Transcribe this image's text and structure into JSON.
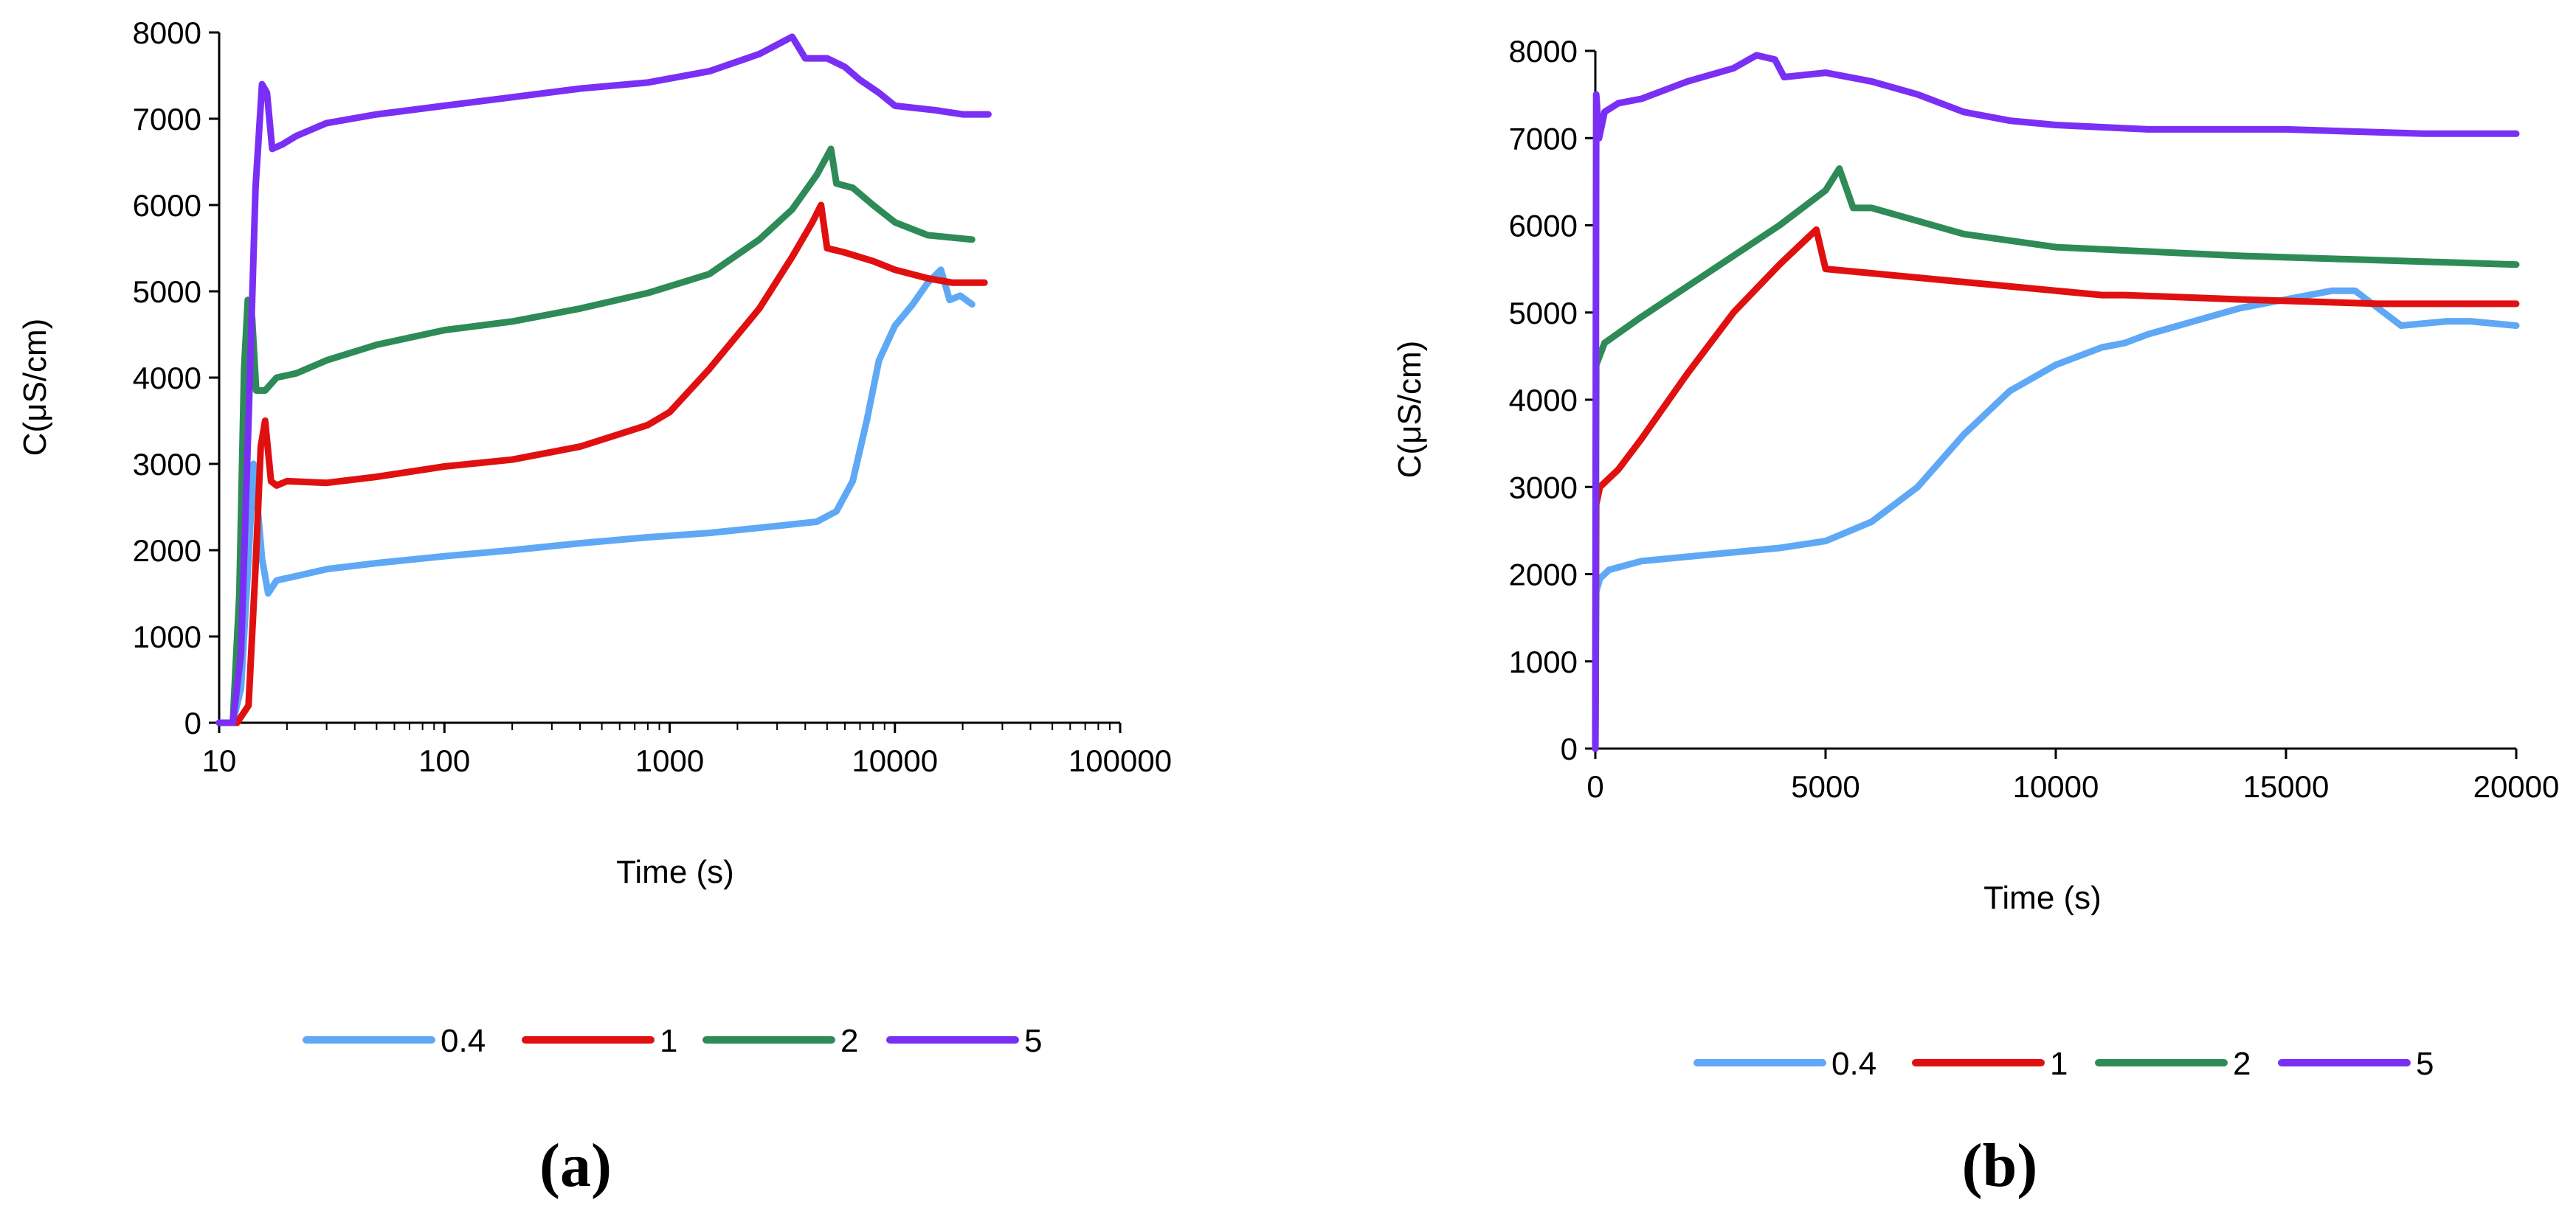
{
  "chart_data": [
    {
      "type": "line",
      "panel_label": "(a)",
      "xscale": "log",
      "xlim": [
        10,
        100000
      ],
      "ylim": [
        0,
        8000
      ],
      "xticks": [
        10,
        100,
        1000,
        10000,
        100000
      ],
      "yticks": [
        0,
        1000,
        2000,
        3000,
        4000,
        5000,
        6000,
        7000,
        8000
      ],
      "xtick_labels": [
        "10",
        "100",
        "1000",
        "10000",
        "100000"
      ],
      "ytick_labels": [
        "0",
        "1000",
        "2000",
        "3000",
        "4000",
        "5000",
        "6000",
        "7000",
        "8000"
      ],
      "xlabel": "Time (s)",
      "ylabel": "C(μS/cm)",
      "legend": "bottom",
      "series": [
        {
          "name": "0.4",
          "color": "#5fa8f5",
          "points": [
            [
              10,
              0
            ],
            [
              11.5,
              0
            ],
            [
              12.5,
              400
            ],
            [
              13.5,
              1900
            ],
            [
              14.2,
              3000
            ],
            [
              14.7,
              2600
            ],
            [
              15.5,
              1900
            ],
            [
              16.5,
              1500
            ],
            [
              18,
              1650
            ],
            [
              22,
              1700
            ],
            [
              30,
              1780
            ],
            [
              50,
              1850
            ],
            [
              100,
              1930
            ],
            [
              200,
              2000
            ],
            [
              400,
              2080
            ],
            [
              800,
              2150
            ],
            [
              1500,
              2200
            ],
            [
              3000,
              2280
            ],
            [
              4500,
              2330
            ],
            [
              5500,
              2450
            ],
            [
              6500,
              2800
            ],
            [
              7500,
              3500
            ],
            [
              8500,
              4200
            ],
            [
              10000,
              4600
            ],
            [
              12000,
              4850
            ],
            [
              14000,
              5100
            ],
            [
              16000,
              5250
            ],
            [
              17500,
              4900
            ],
            [
              19500,
              4950
            ],
            [
              22000,
              4850
            ]
          ]
        },
        {
          "name": "1",
          "color": "#e01010",
          "points": [
            [
              10,
              0
            ],
            [
              12,
              0
            ],
            [
              13.5,
              200
            ],
            [
              14.5,
              1800
            ],
            [
              15.3,
              3200
            ],
            [
              16,
              3500
            ],
            [
              17,
              2800
            ],
            [
              18,
              2750
            ],
            [
              20,
              2800
            ],
            [
              30,
              2780
            ],
            [
              50,
              2850
            ],
            [
              100,
              2970
            ],
            [
              200,
              3050
            ],
            [
              400,
              3200
            ],
            [
              800,
              3450
            ],
            [
              1000,
              3600
            ],
            [
              1500,
              4100
            ],
            [
              2500,
              4800
            ],
            [
              3500,
              5400
            ],
            [
              4300,
              5800
            ],
            [
              4700,
              6000
            ],
            [
              5000,
              5500
            ],
            [
              6000,
              5450
            ],
            [
              8000,
              5350
            ],
            [
              10000,
              5250
            ],
            [
              14000,
              5150
            ],
            [
              18000,
              5100
            ],
            [
              25000,
              5100
            ]
          ]
        },
        {
          "name": "2",
          "color": "#2e8b57",
          "points": [
            [
              10,
              0
            ],
            [
              11.5,
              0
            ],
            [
              12.3,
              1500
            ],
            [
              12.9,
              4100
            ],
            [
              13.4,
              4900
            ],
            [
              14,
              4700
            ],
            [
              14.6,
              3850
            ],
            [
              16,
              3850
            ],
            [
              18,
              4000
            ],
            [
              22,
              4050
            ],
            [
              30,
              4200
            ],
            [
              50,
              4380
            ],
            [
              100,
              4550
            ],
            [
              200,
              4650
            ],
            [
              400,
              4800
            ],
            [
              800,
              4980
            ],
            [
              1500,
              5200
            ],
            [
              2500,
              5600
            ],
            [
              3500,
              5950
            ],
            [
              4500,
              6350
            ],
            [
              5200,
              6650
            ],
            [
              5500,
              6250
            ],
            [
              6500,
              6200
            ],
            [
              8000,
              6000
            ],
            [
              10000,
              5800
            ],
            [
              14000,
              5650
            ],
            [
              22000,
              5600
            ]
          ]
        },
        {
          "name": "5",
          "color": "#7a2ff5",
          "points": [
            [
              10,
              0
            ],
            [
              11.5,
              0
            ],
            [
              12.5,
              800
            ],
            [
              13.5,
              3500
            ],
            [
              14.5,
              6200
            ],
            [
              15.5,
              7400
            ],
            [
              16.3,
              7300
            ],
            [
              17.2,
              6650
            ],
            [
              19,
              6700
            ],
            [
              22,
              6800
            ],
            [
              30,
              6950
            ],
            [
              50,
              7050
            ],
            [
              100,
              7150
            ],
            [
              200,
              7250
            ],
            [
              400,
              7350
            ],
            [
              800,
              7420
            ],
            [
              1500,
              7550
            ],
            [
              2500,
              7750
            ],
            [
              3500,
              7950
            ],
            [
              4000,
              7700
            ],
            [
              5000,
              7700
            ],
            [
              6000,
              7600
            ],
            [
              7000,
              7450
            ],
            [
              8500,
              7300
            ],
            [
              10000,
              7150
            ],
            [
              15000,
              7100
            ],
            [
              20000,
              7050
            ],
            [
              26000,
              7050
            ]
          ]
        }
      ]
    },
    {
      "type": "line",
      "panel_label": "(b)",
      "xscale": "linear",
      "xlim": [
        0,
        20000
      ],
      "ylim": [
        0,
        8000
      ],
      "xticks": [
        0,
        5000,
        10000,
        15000,
        20000
      ],
      "yticks": [
        0,
        1000,
        2000,
        3000,
        4000,
        5000,
        6000,
        7000,
        8000
      ],
      "xtick_labels": [
        "0",
        "5000",
        "10000",
        "15000",
        "20000"
      ],
      "ytick_labels": [
        "0",
        "1000",
        "2000",
        "3000",
        "4000",
        "5000",
        "6000",
        "7000",
        "8000"
      ],
      "xlabel": "Time (s)",
      "ylabel": "C(μS/cm)",
      "legend": "bottom",
      "series": [
        {
          "name": "0.4",
          "color": "#5fa8f5",
          "points": [
            [
              0,
              0
            ],
            [
              20,
              1800
            ],
            [
              100,
              1950
            ],
            [
              300,
              2050
            ],
            [
              1000,
              2150
            ],
            [
              2000,
              2200
            ],
            [
              3000,
              2250
            ],
            [
              4000,
              2300
            ],
            [
              5000,
              2380
            ],
            [
              6000,
              2600
            ],
            [
              7000,
              3000
            ],
            [
              8000,
              3600
            ],
            [
              9000,
              4100
            ],
            [
              10000,
              4400
            ],
            [
              11000,
              4600
            ],
            [
              11500,
              4650
            ],
            [
              12000,
              4750
            ],
            [
              13000,
              4900
            ],
            [
              14000,
              5050
            ],
            [
              15000,
              5150
            ],
            [
              16000,
              5250
            ],
            [
              16500,
              5250
            ],
            [
              17000,
              5050
            ],
            [
              17500,
              4850
            ],
            [
              18500,
              4900
            ],
            [
              19000,
              4900
            ],
            [
              20000,
              4850
            ]
          ]
        },
        {
          "name": "1",
          "color": "#e01010",
          "points": [
            [
              0,
              0
            ],
            [
              20,
              2800
            ],
            [
              100,
              3000
            ],
            [
              500,
              3200
            ],
            [
              1000,
              3550
            ],
            [
              2000,
              4300
            ],
            [
              3000,
              5000
            ],
            [
              4000,
              5550
            ],
            [
              4600,
              5850
            ],
            [
              4800,
              5950
            ],
            [
              5000,
              5500
            ],
            [
              6000,
              5450
            ],
            [
              8000,
              5350
            ],
            [
              10000,
              5250
            ],
            [
              11000,
              5200
            ],
            [
              11500,
              5200
            ],
            [
              14000,
              5150
            ],
            [
              17000,
              5100
            ],
            [
              20000,
              5100
            ]
          ]
        },
        {
          "name": "2",
          "color": "#2e8b57",
          "points": [
            [
              0,
              0
            ],
            [
              20,
              4400
            ],
            [
              200,
              4650
            ],
            [
              1000,
              4950
            ],
            [
              2000,
              5300
            ],
            [
              3000,
              5650
            ],
            [
              4000,
              6000
            ],
            [
              5000,
              6400
            ],
            [
              5300,
              6650
            ],
            [
              5600,
              6200
            ],
            [
              6000,
              6200
            ],
            [
              7000,
              6050
            ],
            [
              8000,
              5900
            ],
            [
              10000,
              5750
            ],
            [
              12000,
              5700
            ],
            [
              14000,
              5650
            ],
            [
              17000,
              5600
            ],
            [
              20000,
              5550
            ]
          ]
        },
        {
          "name": "5",
          "color": "#7a2ff5",
          "points": [
            [
              0,
              0
            ],
            [
              20,
              7500
            ],
            [
              80,
              7000
            ],
            [
              200,
              7300
            ],
            [
              500,
              7400
            ],
            [
              1000,
              7450
            ],
            [
              2000,
              7650
            ],
            [
              3000,
              7800
            ],
            [
              3500,
              7950
            ],
            [
              3900,
              7900
            ],
            [
              4100,
              7700
            ],
            [
              5000,
              7750
            ],
            [
              6000,
              7650
            ],
            [
              7000,
              7500
            ],
            [
              8000,
              7300
            ],
            [
              9000,
              7200
            ],
            [
              10000,
              7150
            ],
            [
              12000,
              7100
            ],
            [
              15000,
              7100
            ],
            [
              18000,
              7050
            ],
            [
              20000,
              7050
            ]
          ]
        }
      ]
    }
  ]
}
